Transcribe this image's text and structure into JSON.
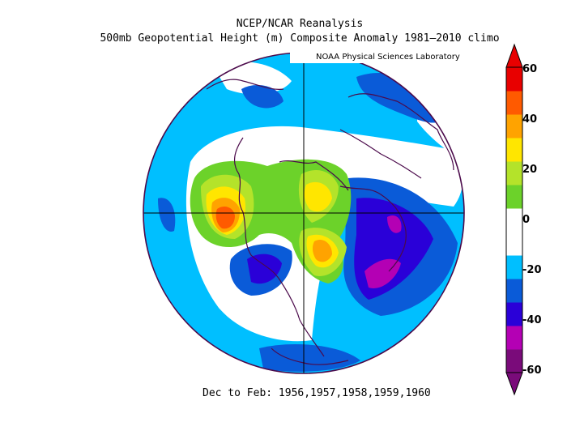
{
  "title": {
    "line1": "NCEP/NCAR Reanalysis",
    "line2": "500mb Geopotential Height (m) Composite Anomaly 1981–2010 climo"
  },
  "credit": "NOAA Physical Sciences Laboratory",
  "footer": "Dec to Feb: 1956,1957,1958,1959,1960",
  "colorbar": {
    "ticks": [
      "60",
      "40",
      "20",
      "0",
      "-20",
      "-40",
      "-60"
    ],
    "colors": [
      "#7a0b7a",
      "#b400b4",
      "#2a00d8",
      "#0a5bd8",
      "#00bfff",
      "#ffffff",
      "#ffffff",
      "#6cd22a",
      "#b4e32a",
      "#ffe600",
      "#ffa300",
      "#ff5a00",
      "#e80000"
    ]
  },
  "map": {
    "projection": "north-polar-stereographic",
    "ocean_fill": "#00bfff",
    "coastline_color": "#4b0a4b"
  }
}
